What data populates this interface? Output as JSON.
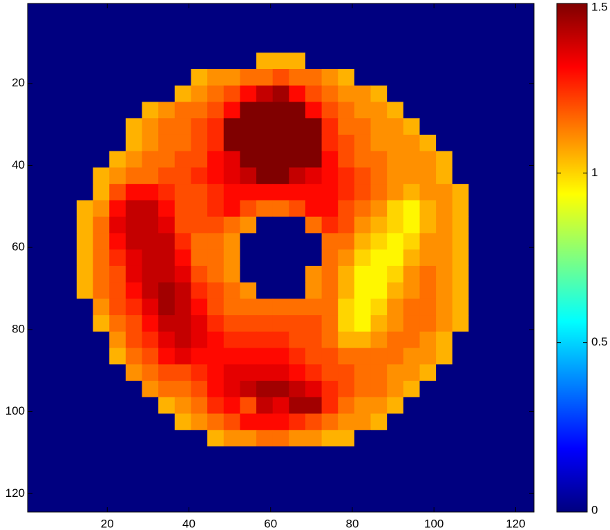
{
  "chart_data": {
    "type": "heatmap",
    "colormap": "jet",
    "yaxis_reversed": true,
    "xlim": [
      0.5,
      124.5
    ],
    "ylim": [
      0.5,
      124.5
    ],
    "xticks": [
      20,
      40,
      60,
      80,
      100,
      120
    ],
    "yticks": [
      20,
      40,
      60,
      80,
      100,
      120
    ],
    "clim": [
      0,
      1.5
    ],
    "colorbar_ticks": [
      0,
      0.5,
      1,
      1.5
    ],
    "x": [
      2.5,
      6.5,
      10.5,
      14.5,
      18.5,
      22.5,
      26.5,
      30.5,
      34.5,
      38.5,
      42.5,
      46.5,
      50.5,
      54.5,
      58.5,
      62.5,
      66.5,
      70.5,
      74.5,
      78.5,
      82.5,
      86.5,
      90.5,
      94.5,
      98.5,
      102.5,
      106.5,
      110.5,
      114.5,
      118.5,
      122.5
    ],
    "y": [
      2.5,
      6.5,
      10.5,
      14.5,
      18.5,
      22.5,
      26.5,
      30.5,
      34.5,
      38.5,
      42.5,
      46.5,
      50.5,
      54.5,
      58.5,
      62.5,
      66.5,
      70.5,
      74.5,
      78.5,
      82.5,
      86.5,
      90.5,
      94.5,
      98.5,
      102.5,
      106.5,
      110.5,
      114.5,
      118.5,
      122.5
    ],
    "values": [
      [
        0,
        0,
        0,
        0,
        0,
        0,
        0,
        0,
        0,
        0,
        0,
        0,
        0,
        0,
        0,
        0,
        0,
        0,
        0,
        0,
        0,
        0,
        0,
        0,
        0,
        0,
        0,
        0,
        0,
        0,
        0
      ],
      [
        0,
        0,
        0,
        0,
        0,
        0,
        0,
        0,
        0,
        0,
        0,
        0,
        0,
        0,
        0,
        0,
        0,
        0,
        0,
        0,
        0,
        0,
        0,
        0,
        0,
        0,
        0,
        0,
        0,
        0,
        0
      ],
      [
        0,
        0,
        0,
        0,
        0,
        0,
        0,
        0,
        0,
        0,
        0,
        0,
        0,
        0,
        0,
        0,
        0,
        0,
        0,
        0,
        0,
        0,
        0,
        0,
        0,
        0,
        0,
        0,
        0,
        0,
        0
      ],
      [
        0,
        0,
        0,
        0,
        0,
        0,
        0,
        0,
        0,
        0,
        0,
        0,
        0,
        0,
        1.05,
        1.05,
        1.05,
        0,
        0,
        0,
        0,
        0,
        0,
        0,
        0,
        0,
        0,
        0,
        0,
        0,
        0
      ],
      [
        0,
        0,
        0,
        0,
        0,
        0,
        0,
        0,
        0,
        0,
        1.05,
        1.1,
        1.1,
        1.15,
        1.15,
        1.2,
        1.15,
        1.15,
        1.1,
        1.05,
        0,
        0,
        0,
        0,
        0,
        0,
        0,
        0,
        0,
        0,
        0
      ],
      [
        0,
        0,
        0,
        0,
        0,
        0,
        0,
        0,
        0,
        1.05,
        1.1,
        1.15,
        1.2,
        1.3,
        1.4,
        1.45,
        1.3,
        1.2,
        1.15,
        1.1,
        1.1,
        1.05,
        0,
        0,
        0,
        0,
        0,
        0,
        0,
        0,
        0
      ],
      [
        0,
        0,
        0,
        0,
        0,
        0,
        0,
        1.05,
        1.1,
        1.15,
        1.15,
        1.2,
        1.3,
        1.5,
        1.5,
        1.5,
        1.5,
        1.3,
        1.2,
        1.15,
        1.1,
        1.1,
        1.05,
        0,
        0,
        0,
        0,
        0,
        0,
        0,
        0
      ],
      [
        0,
        0,
        0,
        0,
        0,
        0,
        1.05,
        1.1,
        1.15,
        1.15,
        1.2,
        1.25,
        1.5,
        1.5,
        1.5,
        1.5,
        1.5,
        1.5,
        1.25,
        1.15,
        1.15,
        1.1,
        1.1,
        1.05,
        0,
        0,
        0,
        0,
        0,
        0,
        0
      ],
      [
        0,
        0,
        0,
        0,
        0,
        0,
        1.05,
        1.1,
        1.15,
        1.15,
        1.2,
        1.25,
        1.5,
        1.5,
        1.5,
        1.5,
        1.5,
        1.5,
        1.25,
        1.2,
        1.15,
        1.1,
        1.1,
        1.1,
        1.05,
        0,
        0,
        0,
        0,
        0,
        0
      ],
      [
        0,
        0,
        0,
        0,
        0,
        1.05,
        1.1,
        1.15,
        1.15,
        1.2,
        1.2,
        1.3,
        1.35,
        1.5,
        1.5,
        1.5,
        1.5,
        1.5,
        1.3,
        1.2,
        1.15,
        1.15,
        1.1,
        1.1,
        1.1,
        1.05,
        0,
        0,
        0,
        0,
        0
      ],
      [
        0,
        0,
        0,
        0,
        1.05,
        1.1,
        1.15,
        1.15,
        1.2,
        1.2,
        1.25,
        1.3,
        1.35,
        1.4,
        1.5,
        1.5,
        1.4,
        1.35,
        1.3,
        1.25,
        1.2,
        1.15,
        1.1,
        1.1,
        1.1,
        1.05,
        0,
        0,
        0,
        0,
        0
      ],
      [
        0,
        0,
        0,
        0,
        1.05,
        1.2,
        1.3,
        1.3,
        1.25,
        1.2,
        1.2,
        1.25,
        1.3,
        1.3,
        1.3,
        1.3,
        1.3,
        1.3,
        1.3,
        1.25,
        1.2,
        1.15,
        1.1,
        1.05,
        1.1,
        1.1,
        1.05,
        0,
        0,
        0,
        0
      ],
      [
        0,
        0,
        0,
        1.05,
        1.1,
        1.3,
        1.4,
        1.4,
        1.3,
        1.2,
        1.2,
        1.25,
        1.3,
        1.2,
        1.15,
        1.15,
        1.2,
        1.3,
        1.3,
        1.2,
        1.15,
        1.1,
        1.0,
        0.95,
        1.05,
        1.1,
        1.05,
        0,
        0,
        0,
        0
      ],
      [
        0,
        0,
        0,
        1.05,
        1.15,
        1.35,
        1.4,
        1.4,
        1.35,
        1.2,
        1.2,
        1.2,
        1.15,
        1.1,
        0,
        0,
        0,
        1.15,
        1.25,
        1.2,
        1.1,
        1.05,
        1.0,
        0.95,
        1.05,
        1.1,
        1.05,
        0,
        0,
        0,
        0
      ],
      [
        0,
        0,
        0,
        1.05,
        1.15,
        1.3,
        1.4,
        1.4,
        1.4,
        1.25,
        1.15,
        1.15,
        1.1,
        0,
        0,
        0,
        0,
        0,
        1.15,
        1.15,
        1.05,
        1.0,
        0.95,
        1.0,
        1.1,
        1.1,
        1.05,
        0,
        0,
        0,
        0
      ],
      [
        0,
        0,
        0,
        1.05,
        1.15,
        1.25,
        1.35,
        1.4,
        1.4,
        1.3,
        1.15,
        1.15,
        1.1,
        0,
        0,
        0,
        0,
        0,
        1.15,
        1.1,
        1.0,
        0.95,
        0.95,
        1.05,
        1.1,
        1.1,
        1.05,
        0,
        0,
        0,
        0
      ],
      [
        0,
        0,
        0,
        1.05,
        1.15,
        1.2,
        1.35,
        1.4,
        1.4,
        1.35,
        1.2,
        1.15,
        1.1,
        0,
        0,
        0,
        0,
        1.1,
        1.15,
        1.05,
        0.95,
        0.95,
        1.0,
        1.1,
        1.15,
        1.1,
        1.05,
        0,
        0,
        0,
        0
      ],
      [
        0,
        0,
        0,
        1.05,
        1.15,
        1.2,
        1.3,
        1.4,
        1.45,
        1.4,
        1.25,
        1.2,
        1.15,
        1.1,
        0,
        0,
        0,
        1.1,
        1.15,
        1.05,
        0.95,
        0.95,
        1.05,
        1.1,
        1.15,
        1.1,
        1.05,
        0,
        0,
        0,
        0
      ],
      [
        0,
        0,
        0,
        0,
        1.1,
        1.2,
        1.25,
        1.35,
        1.45,
        1.4,
        1.3,
        1.2,
        1.15,
        1.15,
        1.15,
        1.15,
        1.15,
        1.15,
        1.15,
        1.0,
        0.95,
        1.0,
        1.1,
        1.15,
        1.15,
        1.1,
        1.05,
        0,
        0,
        0,
        0
      ],
      [
        0,
        0,
        0,
        0,
        1.05,
        1.15,
        1.2,
        1.3,
        1.4,
        1.4,
        1.35,
        1.25,
        1.2,
        1.2,
        1.2,
        1.2,
        1.2,
        1.2,
        1.15,
        1.0,
        0.95,
        1.05,
        1.1,
        1.15,
        1.15,
        1.1,
        1.05,
        0,
        0,
        0,
        0
      ],
      [
        0,
        0,
        0,
        0,
        0,
        1.1,
        1.2,
        1.25,
        1.35,
        1.4,
        1.35,
        1.3,
        1.25,
        1.25,
        1.25,
        1.25,
        1.2,
        1.2,
        1.15,
        1.05,
        1.05,
        1.1,
        1.15,
        1.15,
        1.1,
        1.05,
        0,
        0,
        0,
        0,
        0
      ],
      [
        0,
        0,
        0,
        0,
        0,
        1.05,
        1.15,
        1.2,
        1.3,
        1.35,
        1.3,
        1.3,
        1.3,
        1.3,
        1.3,
        1.3,
        1.25,
        1.2,
        1.2,
        1.15,
        1.15,
        1.15,
        1.15,
        1.1,
        1.1,
        1.05,
        0,
        0,
        0,
        0,
        0
      ],
      [
        0,
        0,
        0,
        0,
        0,
        0,
        1.1,
        1.15,
        1.2,
        1.2,
        1.25,
        1.3,
        1.35,
        1.35,
        1.35,
        1.35,
        1.3,
        1.25,
        1.2,
        1.2,
        1.15,
        1.15,
        1.1,
        1.1,
        1.05,
        0,
        0,
        0,
        0,
        0,
        0
      ],
      [
        0,
        0,
        0,
        0,
        0,
        0,
        0,
        1.1,
        1.15,
        1.15,
        1.2,
        1.3,
        1.35,
        1.4,
        1.45,
        1.45,
        1.4,
        1.35,
        1.25,
        1.2,
        1.15,
        1.15,
        1.1,
        1.05,
        0,
        0,
        0,
        0,
        0,
        0,
        0
      ],
      [
        0,
        0,
        0,
        0,
        0,
        0,
        0,
        0,
        1.05,
        1.1,
        1.15,
        1.25,
        1.3,
        1.2,
        1.4,
        1.35,
        1.45,
        1.45,
        1.25,
        1.15,
        1.1,
        1.1,
        1.05,
        0,
        0,
        0,
        0,
        0,
        0,
        0,
        0
      ],
      [
        0,
        0,
        0,
        0,
        0,
        0,
        0,
        0,
        0,
        1.05,
        1.1,
        1.15,
        1.2,
        1.3,
        1.3,
        1.3,
        1.25,
        1.2,
        1.15,
        1.1,
        1.1,
        1.05,
        0,
        0,
        0,
        0,
        0,
        0,
        0,
        0,
        0
      ],
      [
        0,
        0,
        0,
        0,
        0,
        0,
        0,
        0,
        0,
        0,
        0,
        1.05,
        1.1,
        1.1,
        1.15,
        1.15,
        1.1,
        1.1,
        1.05,
        1.05,
        0,
        0,
        0,
        0,
        0,
        0,
        0,
        0,
        0,
        0,
        0
      ],
      [
        0,
        0,
        0,
        0,
        0,
        0,
        0,
        0,
        0,
        0,
        0,
        0,
        0,
        0,
        0,
        0,
        0,
        0,
        0,
        0,
        0,
        0,
        0,
        0,
        0,
        0,
        0,
        0,
        0,
        0,
        0
      ],
      [
        0,
        0,
        0,
        0,
        0,
        0,
        0,
        0,
        0,
        0,
        0,
        0,
        0,
        0,
        0,
        0,
        0,
        0,
        0,
        0,
        0,
        0,
        0,
        0,
        0,
        0,
        0,
        0,
        0,
        0,
        0
      ],
      [
        0,
        0,
        0,
        0,
        0,
        0,
        0,
        0,
        0,
        0,
        0,
        0,
        0,
        0,
        0,
        0,
        0,
        0,
        0,
        0,
        0,
        0,
        0,
        0,
        0,
        0,
        0,
        0,
        0,
        0,
        0
      ],
      [
        0,
        0,
        0,
        0,
        0,
        0,
        0,
        0,
        0,
        0,
        0,
        0,
        0,
        0,
        0,
        0,
        0,
        0,
        0,
        0,
        0,
        0,
        0,
        0,
        0,
        0,
        0,
        0,
        0,
        0,
        0
      ]
    ]
  }
}
